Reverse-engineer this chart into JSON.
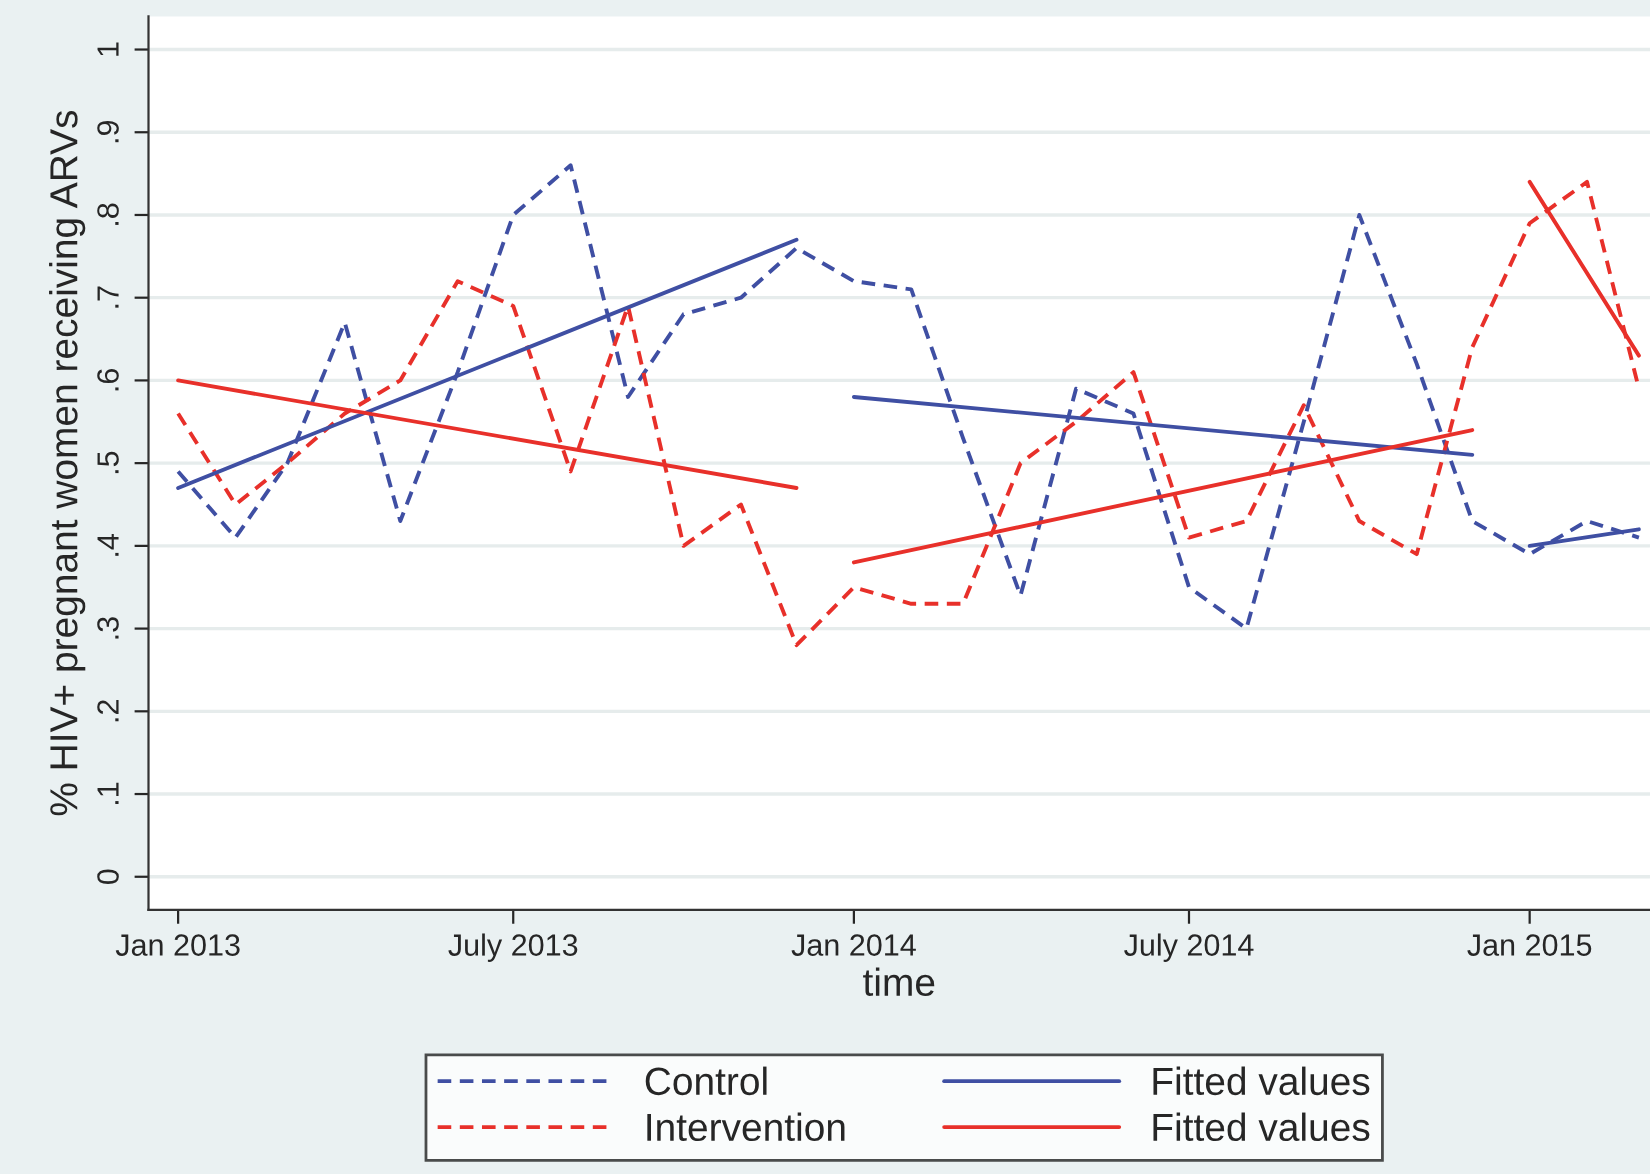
{
  "chart_data": {
    "type": "line",
    "xlabel": "time",
    "ylabel": "% HIV+ pregnant women receiving ARVs",
    "xlim": [
      "2012-12-16",
      "2015-03-07"
    ],
    "xticks": [
      {
        "value": "2013-01",
        "label": "Jan 2013"
      },
      {
        "value": "2013-07",
        "label": "July 2013"
      },
      {
        "value": "2014-01",
        "label": "Jan 2014"
      },
      {
        "value": "2014-07",
        "label": "July 2014"
      },
      {
        "value": "2015-01",
        "label": "Jan 2015"
      }
    ],
    "ylim": [
      -0.04,
      1.04
    ],
    "yticks": [
      0,
      {
        "value": 0.1,
        "label": ".1"
      },
      {
        "value": 0.2,
        "label": ".2"
      },
      {
        "value": 0.3,
        "label": ".3"
      },
      {
        "value": 0.4,
        "label": ".4"
      },
      {
        "value": 0.5,
        "label": ".5"
      },
      {
        "value": 0.6,
        "label": ".6"
      },
      {
        "value": 0.7,
        "label": ".7"
      },
      {
        "value": 0.8,
        "label": ".8"
      },
      {
        "value": 0.9,
        "label": ".9"
      },
      1
    ],
    "grid": "y",
    "legend": "bottom",
    "x": [
      "2013-01",
      "2013-02",
      "2013-03",
      "2013-04",
      "2013-05",
      "2013-06",
      "2013-07",
      "2013-08",
      "2013-09",
      "2013-10",
      "2013-11",
      "2013-12",
      "2014-01",
      "2014-02",
      "2014-03",
      "2014-04",
      "2014-05",
      "2014-06",
      "2014-07",
      "2014-08",
      "2014-09",
      "2014-10",
      "2014-11",
      "2014-12",
      "2015-01",
      "2015-02",
      "2015-03"
    ],
    "series": [
      {
        "name": "Control",
        "color": "#3f4fa3",
        "line_style": "dashed",
        "values": [
          0.49,
          0.41,
          0.5,
          0.67,
          0.43,
          0.61,
          0.8,
          0.86,
          0.58,
          0.68,
          0.7,
          0.76,
          0.72,
          0.71,
          0.53,
          0.34,
          0.59,
          0.56,
          0.35,
          0.3,
          0.55,
          0.8,
          0.62,
          0.43,
          0.39,
          0.43,
          0.41
        ]
      },
      {
        "name": "Intervention",
        "color": "#e8302a",
        "line_style": "dashed",
        "values": [
          0.56,
          0.45,
          0.5,
          0.56,
          0.6,
          0.72,
          0.69,
          0.49,
          0.69,
          0.4,
          0.45,
          0.28,
          0.35,
          0.33,
          0.33,
          0.5,
          0.55,
          0.61,
          0.41,
          0.43,
          0.57,
          0.43,
          0.39,
          0.64,
          0.79,
          0.84,
          0.59
        ]
      },
      {
        "name": "Fitted values",
        "color": "#3f4fa3",
        "line_style": "solid",
        "x": [
          "2013-01",
          "2013-12"
        ],
        "values": [
          0.47,
          0.77
        ]
      },
      {
        "name": "Fitted values",
        "color": "#e8302a",
        "line_style": "solid",
        "x": [
          "2013-01",
          "2013-12"
        ],
        "values": [
          0.6,
          0.47
        ]
      },
      {
        "color": "#3f4fa3",
        "line_style": "solid",
        "x": [
          "2014-01",
          "2014-12"
        ],
        "values": [
          0.58,
          0.51
        ]
      },
      {
        "color": "#e8302a",
        "line_style": "solid",
        "x": [
          "2014-01",
          "2014-12"
        ],
        "values": [
          0.38,
          0.54
        ]
      },
      {
        "color": "#3f4fa3",
        "line_style": "solid",
        "x": [
          "2015-01",
          "2015-03"
        ],
        "values": [
          0.4,
          0.42
        ]
      },
      {
        "color": "#e8302a",
        "line_style": "solid",
        "x": [
          "2015-01",
          "2015-03"
        ],
        "values": [
          0.84,
          0.63
        ]
      }
    ]
  }
}
